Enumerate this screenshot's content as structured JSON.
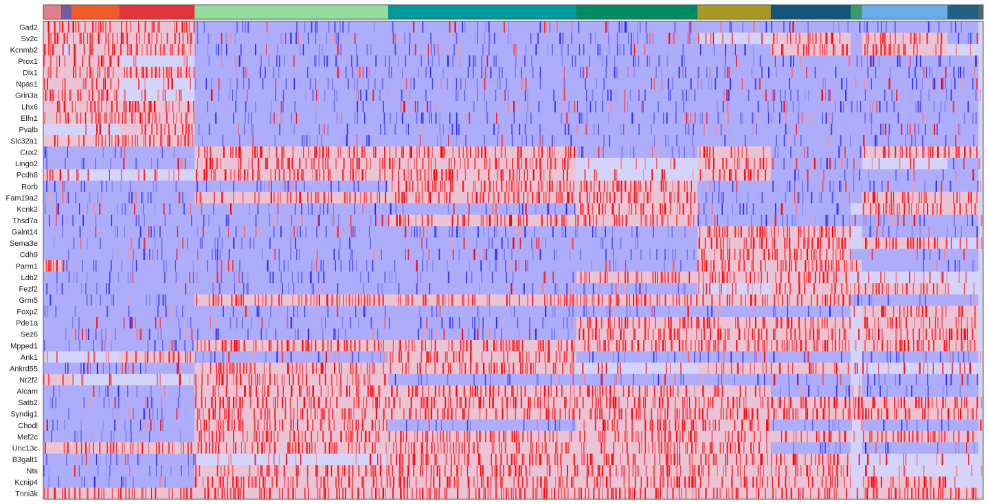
{
  "chart_data": {
    "type": "heatmap",
    "title": "",
    "xlabel": "",
    "ylabel": "",
    "genes": [
      "Gad2",
      "Sv2c",
      "Kcnmb2",
      "Prox1",
      "Dlx1",
      "Npas1",
      "Grin3a",
      "Lhx6",
      "Elfn1",
      "Pvalb",
      "Slc32a1",
      "Cux2",
      "Lingo2",
      "Pcdh8",
      "Rorb",
      "Fam19a2",
      "Kcnk2",
      "Thsd7a",
      "Galnt14",
      "Sema3e",
      "Cdh9",
      "Parm1",
      "Ldb2",
      "Fezf2",
      "Grm5",
      "Foxp2",
      "Pde1a",
      "Sez6",
      "Mpped1",
      "Ank1",
      "Ankrd55",
      "Nr2f2",
      "Alcam",
      "Satb2",
      "Syndig1",
      "Chodl",
      "Mef2c",
      "Unc13c",
      "B3galt1",
      "Nts",
      "Kcnip4",
      "Tnni3k"
    ],
    "clusters": [
      {
        "color": "#e07f8b",
        "fraction": 0.019
      },
      {
        "color": "#6f5ca3",
        "fraction": 0.011
      },
      {
        "color": "#f15a29",
        "fraction": 0.051
      },
      {
        "color": "#e0353b",
        "fraction": 0.08
      },
      {
        "color": "#97dc9f",
        "fraction": 0.206
      },
      {
        "color": "#00999c",
        "fraction": 0.2
      },
      {
        "color": "#008a63",
        "fraction": 0.129
      },
      {
        "color": "#a89a23",
        "fraction": 0.078
      },
      {
        "color": "#12557a",
        "fraction": 0.085
      },
      {
        "color": "#3b9a6b",
        "fraction": 0.012
      },
      {
        "color": "#6aade8",
        "fraction": 0.091
      },
      {
        "color": "#225f84",
        "fraction": 0.033
      },
      {
        "color": "#4a6d66",
        "fraction": 0.005
      }
    ],
    "expression_profile_high": [
      [
        0,
        1,
        2,
        3,
        0
      ],
      [
        0,
        1,
        2,
        3,
        8,
        10,
        0
      ],
      [
        0,
        2,
        3,
        8,
        10,
        0
      ],
      [
        0,
        1,
        2,
        0
      ],
      [
        0,
        1,
        2,
        3,
        0
      ],
      [
        0,
        1,
        2,
        0
      ],
      [
        1,
        2,
        0
      ],
      [
        1,
        2,
        3,
        0
      ],
      [
        1,
        2,
        3,
        0
      ],
      [
        3
      ],
      [
        0,
        1,
        2,
        3
      ],
      [
        4,
        5,
        7,
        10,
        11
      ],
      [
        4,
        5,
        7
      ],
      [
        0,
        4,
        5,
        7
      ],
      [
        5,
        6
      ],
      [
        4,
        5,
        6,
        10,
        11
      ],
      [
        6,
        10,
        11
      ],
      [
        5,
        6
      ],
      [
        7,
        8
      ],
      [
        7,
        8,
        10
      ],
      [
        7,
        8
      ],
      [
        0,
        7,
        8,
        9
      ],
      [
        6,
        7,
        8
      ],
      [
        8,
        9,
        10
      ],
      [
        4,
        5,
        6,
        7,
        8
      ],
      [
        10,
        11
      ],
      [
        6,
        7,
        8,
        10,
        11
      ],
      [
        6,
        7,
        8,
        10,
        11
      ],
      [
        4,
        5,
        6,
        7,
        8,
        10,
        11
      ],
      [
        3,
        5
      ],
      [
        4,
        5,
        7,
        8
      ],
      [
        0,
        1,
        4
      ],
      [
        4,
        5,
        6,
        7
      ],
      [
        4,
        5,
        6,
        7,
        8,
        9,
        10,
        11
      ],
      [
        4,
        5,
        6,
        7,
        8,
        9,
        10,
        11
      ],
      [
        4,
        6,
        7
      ],
      [
        4,
        5,
        6,
        7,
        8,
        10,
        11
      ],
      [
        0,
        1,
        2,
        3,
        4,
        5,
        6,
        7
      ],
      [
        5,
        6,
        7,
        8
      ],
      [
        4,
        5,
        6,
        7,
        8
      ],
      [
        4,
        5,
        6,
        7,
        8,
        10
      ],
      [
        0,
        1,
        2,
        3,
        4,
        5,
        6,
        7,
        8,
        10,
        11
      ]
    ],
    "expression_profile_low": [
      [
        4,
        5,
        6,
        7,
        8,
        9,
        10,
        11
      ],
      [
        4,
        5,
        6,
        9,
        11
      ],
      [
        4,
        5,
        6,
        7,
        9
      ],
      [
        4,
        5,
        6,
        7,
        8,
        9,
        10,
        11
      ],
      [
        4,
        5,
        6,
        7,
        8,
        9,
        10,
        11
      ],
      [
        4,
        5,
        6,
        7,
        8,
        9,
        10,
        11
      ],
      [
        4,
        5,
        6,
        7,
        8,
        9,
        10,
        11
      ],
      [
        4,
        5,
        6,
        7,
        8,
        9,
        10,
        11
      ],
      [
        4,
        5,
        6,
        7,
        8,
        9,
        10,
        11
      ],
      [
        4,
        5,
        6,
        7,
        8,
        9,
        10,
        11
      ],
      [
        4,
        5,
        6,
        7,
        8,
        9,
        10,
        11
      ],
      [
        0,
        1,
        2,
        3,
        6,
        8,
        9
      ],
      [
        0,
        1,
        2,
        3,
        8,
        9,
        11
      ],
      [
        8,
        9,
        10,
        11
      ],
      [
        0,
        1,
        2,
        3,
        4,
        7,
        8,
        9,
        10,
        11
      ],
      [
        0,
        1,
        2,
        3,
        7,
        8,
        9
      ],
      [
        0,
        1,
        2,
        3,
        4,
        5,
        7,
        8
      ],
      [
        0,
        1,
        2,
        3,
        4,
        7,
        8,
        9,
        10,
        11
      ],
      [
        0,
        1,
        2,
        3,
        4,
        5,
        6,
        10,
        11
      ],
      [
        0,
        1,
        2,
        3,
        4,
        5,
        6
      ],
      [
        0,
        1,
        2,
        3,
        4,
        5,
        6,
        9,
        10,
        11
      ],
      [
        1,
        2,
        3,
        4,
        5,
        6,
        10,
        11
      ],
      [
        0,
        1,
        2,
        3,
        4,
        5
      ],
      [
        0,
        1,
        2,
        3,
        4,
        5,
        6
      ],
      [
        0,
        1,
        2,
        3,
        9,
        10,
        11
      ],
      [
        0,
        1,
        2,
        3,
        4,
        5,
        6,
        7,
        8
      ],
      [
        0,
        1,
        2,
        3,
        4,
        5
      ],
      [
        0,
        1,
        2,
        3,
        4,
        5
      ],
      [
        0,
        1,
        2,
        3
      ],
      [
        4,
        6,
        7,
        8,
        10,
        11
      ],
      [
        0,
        1,
        2,
        3
      ],
      [
        5,
        6,
        7,
        8,
        10,
        11
      ],
      [
        0,
        1,
        2,
        3,
        8,
        10,
        11
      ],
      [
        0,
        1,
        2,
        3
      ],
      [
        0,
        1,
        2,
        3
      ],
      [
        0,
        1,
        2,
        3,
        5,
        8,
        10,
        11
      ],
      [
        0,
        1,
        2,
        3
      ],
      [
        8,
        10,
        11
      ],
      [
        0,
        1,
        2,
        3
      ],
      [
        0,
        1,
        2,
        3
      ],
      [
        0,
        1,
        2,
        3
      ],
      []
    ],
    "color_scale": {
      "low": "#0000ff",
      "mid": "#e6e6fa",
      "high": "#ff0000"
    },
    "legend": "none",
    "grid": false
  }
}
